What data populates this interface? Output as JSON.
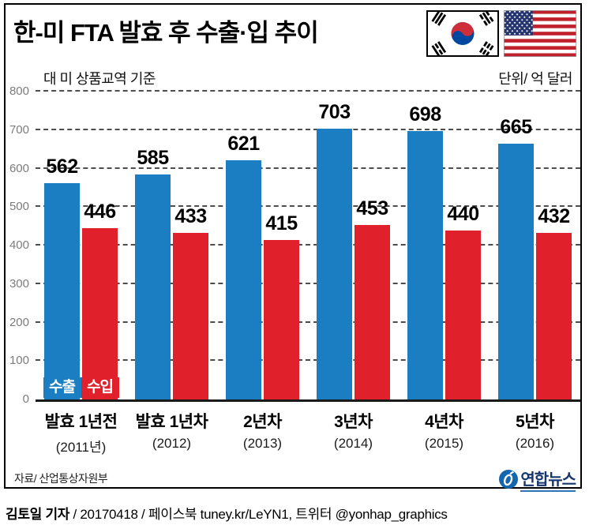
{
  "header": {
    "title": "한-미 FTA 발효 후 수출·입 추이"
  },
  "subheader": {
    "basis": "대 미 상품교역 기준",
    "unit": "단위/ 억 달러"
  },
  "icons": {
    "flag_left": "korea-flag-icon",
    "flag_right": "us-flag-icon",
    "logo_icon": "yonhap-logo-icon"
  },
  "colors": {
    "export_blue": "#1b7ec2",
    "import_red": "#e0202a",
    "logo_navy": "#15366e",
    "logo_blue": "#1467af"
  },
  "chart_data": {
    "type": "bar",
    "title": "한-미 FTA 발효 후 수출·입 추이",
    "xlabel": "",
    "ylabel": "단위/ 억 달러",
    "ylim": [
      0,
      800
    ],
    "ytick_interval": 100,
    "grid": true,
    "legend_position": "bottom-left-inside",
    "categories": [
      {
        "label": "발효 1년전",
        "sub": "(2011년)"
      },
      {
        "label": "발효 1년차",
        "sub": "(2012)"
      },
      {
        "label": "2년차",
        "sub": "(2013)"
      },
      {
        "label": "3년차",
        "sub": "(2014)"
      },
      {
        "label": "4년차",
        "sub": "(2015)"
      },
      {
        "label": "5년차",
        "sub": "(2016)"
      }
    ],
    "series": [
      {
        "name": "수출",
        "key": "export",
        "color": "#1b7ec2",
        "values": [
          562,
          585,
          621,
          703,
          698,
          665
        ]
      },
      {
        "name": "수입",
        "key": "import",
        "color": "#e0202a",
        "values": [
          446,
          433,
          415,
          453,
          440,
          432
        ]
      }
    ]
  },
  "source": "자료/ 산업통상자원부",
  "logo": {
    "agency": "연합뉴스"
  },
  "footer": {
    "byline": "김토일 기자",
    "rest": " / 20170418 / 페이스북 tuney.kr/LeYN1, 트위터 @yonhap_graphics"
  }
}
